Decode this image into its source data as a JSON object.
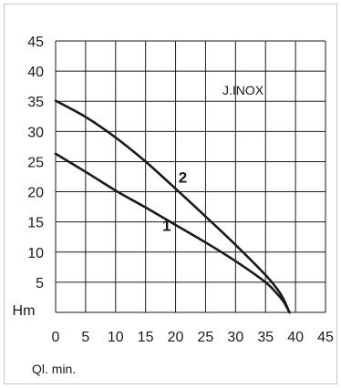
{
  "chart_data": {
    "type": "line",
    "title": "",
    "annotation": "J.INOX",
    "xlabel": "Ql. min.",
    "ylabel": "Hm",
    "xlim": [
      0,
      45
    ],
    "ylim": [
      0,
      45
    ],
    "grid": true,
    "x_ticks": [
      "0",
      "5",
      "10",
      "15",
      "20",
      "25",
      "30",
      "35",
      "40",
      "45"
    ],
    "y_ticks": [
      "5",
      "10",
      "15",
      "20",
      "25",
      "30",
      "35",
      "40",
      "45"
    ],
    "series": [
      {
        "name": "1",
        "x": [
          0,
          5,
          10,
          15,
          20,
          25,
          30,
          35,
          37,
          38,
          39
        ],
        "y": [
          26.3,
          23.3,
          20.2,
          17.4,
          14.5,
          11.6,
          8.5,
          5.0,
          3.0,
          1.8,
          0
        ]
      },
      {
        "name": "2",
        "x": [
          0,
          5,
          10,
          15,
          20,
          25,
          30,
          35,
          37,
          38,
          39
        ],
        "y": [
          35.1,
          32.4,
          29.0,
          25.0,
          20.5,
          15.9,
          11.2,
          6.2,
          3.8,
          2.2,
          0
        ]
      }
    ],
    "series_label_positions": [
      {
        "x": 18.5,
        "y": 13.5
      },
      {
        "x": 21.2,
        "y": 21.5
      }
    ],
    "colors": {
      "line": "#1a1a1a",
      "grid": "#1a1a1a",
      "frame_border": "#c8c8c8"
    }
  }
}
